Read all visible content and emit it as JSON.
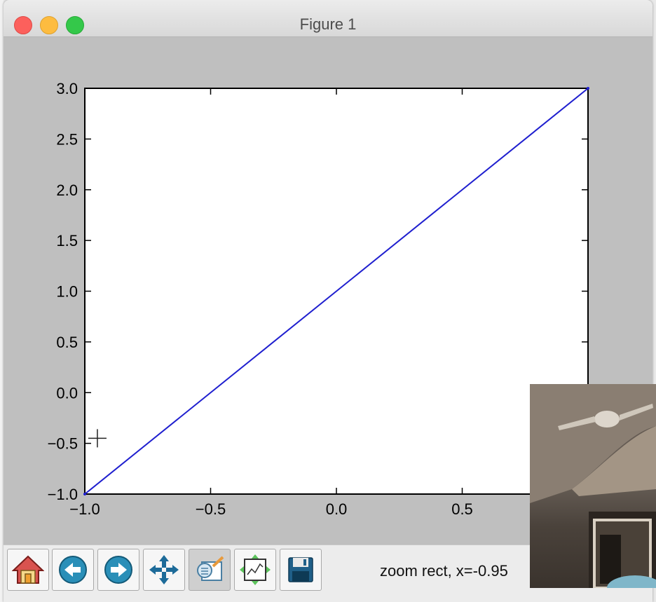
{
  "window": {
    "title": "Figure 1"
  },
  "toolbar": {
    "buttons": [
      {
        "name": "home",
        "icon": "home-icon"
      },
      {
        "name": "back",
        "icon": "arrow-left-icon"
      },
      {
        "name": "forward",
        "icon": "arrow-right-icon"
      },
      {
        "name": "pan",
        "icon": "move-icon"
      },
      {
        "name": "zoom",
        "icon": "zoom-rect-icon",
        "pressed": true
      },
      {
        "name": "subplots",
        "icon": "subplots-icon"
      },
      {
        "name": "save",
        "icon": "floppy-disk-icon"
      }
    ],
    "status": "zoom rect, x=-0.95"
  },
  "colors": {
    "line": "#1f1fcf",
    "figure_background": "#bfbfbf",
    "axes_background": "#ffffff"
  },
  "chart_data": {
    "type": "line",
    "series": [
      {
        "x": [
          -1.0,
          1.0
        ],
        "y": [
          -1.0,
          3.0
        ]
      }
    ],
    "xlim": [
      -1.0,
      1.0
    ],
    "ylim": [
      -1.0,
      3.0
    ],
    "xticks": [
      -1.0,
      -0.5,
      0.0,
      0.5,
      1.0
    ],
    "xticklabels": [
      "−1.0",
      "−0.5",
      "0.0",
      "0.5",
      ""
    ],
    "yticks": [
      -1.0,
      -0.5,
      0.0,
      0.5,
      1.0,
      1.5,
      2.0,
      2.5,
      3.0
    ],
    "yticklabels": [
      "−1.0",
      "−0.5",
      "0.0",
      "0.5",
      "1.0",
      "1.5",
      "2.0",
      "2.5",
      "3.0"
    ],
    "cursor": {
      "x": -0.95,
      "y": -0.45
    },
    "grid": false
  }
}
